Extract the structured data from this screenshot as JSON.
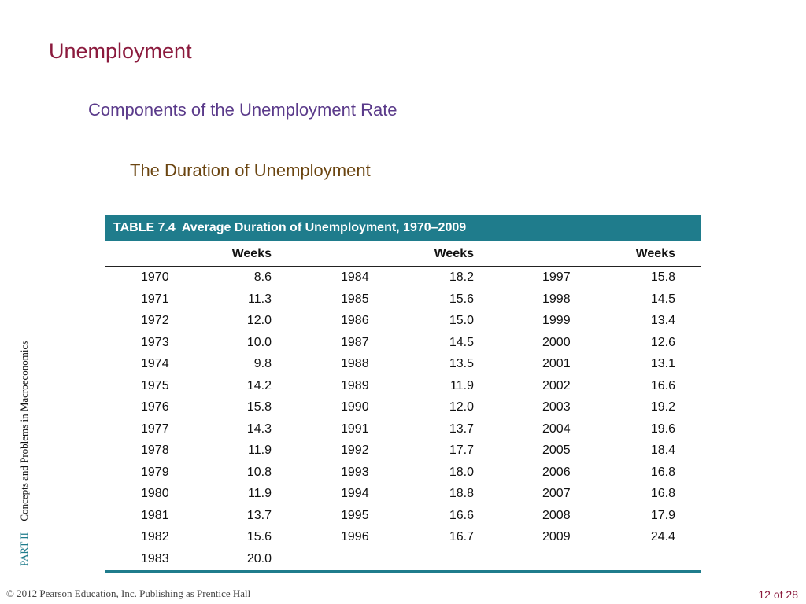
{
  "slide": {
    "title": "Unemployment",
    "subtitle": "Components of the Unemployment Rate",
    "subsubtitle": "The Duration of Unemployment"
  },
  "table": {
    "caption_label": "TABLE 7.4",
    "caption_text": "Average Duration of Unemployment, 1970–2009",
    "column_header": "Weeks",
    "rows": [
      [
        "1970",
        "8.6",
        "1984",
        "18.2",
        "1997",
        "15.8"
      ],
      [
        "1971",
        "11.3",
        "1985",
        "15.6",
        "1998",
        "14.5"
      ],
      [
        "1972",
        "12.0",
        "1986",
        "15.0",
        "1999",
        "13.4"
      ],
      [
        "1973",
        "10.0",
        "1987",
        "14.5",
        "2000",
        "12.6"
      ],
      [
        "1974",
        "9.8",
        "1988",
        "13.5",
        "2001",
        "13.1"
      ],
      [
        "1975",
        "14.2",
        "1989",
        "11.9",
        "2002",
        "16.6"
      ],
      [
        "1976",
        "15.8",
        "1990",
        "12.0",
        "2003",
        "19.2"
      ],
      [
        "1977",
        "14.3",
        "1991",
        "13.7",
        "2004",
        "19.6"
      ],
      [
        "1978",
        "11.9",
        "1992",
        "17.7",
        "2005",
        "18.4"
      ],
      [
        "1979",
        "10.8",
        "1993",
        "18.0",
        "2006",
        "16.8"
      ],
      [
        "1980",
        "11.9",
        "1994",
        "18.8",
        "2007",
        "16.8"
      ],
      [
        "1981",
        "13.7",
        "1995",
        "16.6",
        "2008",
        "17.9"
      ],
      [
        "1982",
        "15.6",
        "1996",
        "16.7",
        "2009",
        "24.4"
      ],
      [
        "1983",
        "20.0",
        "",
        "",
        "",
        ""
      ]
    ]
  },
  "sidebar": {
    "part": "PART  II",
    "book": "Concepts and Problems in Macroeconomics"
  },
  "footer": {
    "copyright": "© 2012 Pearson Education, Inc. Publishing as Prentice Hall",
    "page": "12 of 28"
  },
  "colors": {
    "title": "#8b1a3d",
    "subtitle": "#5a3a8a",
    "subsubtitle": "#6b4511",
    "table_accent": "#1f7c8c"
  }
}
